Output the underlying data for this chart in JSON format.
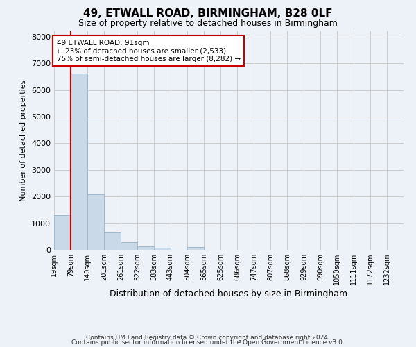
{
  "title1": "49, ETWALL ROAD, BIRMINGHAM, B28 0LF",
  "title2": "Size of property relative to detached houses in Birmingham",
  "xlabel": "Distribution of detached houses by size in Birmingham",
  "ylabel": "Number of detached properties",
  "bar_labels": [
    "19sqm",
    "79sqm",
    "140sqm",
    "201sqm",
    "261sqm",
    "322sqm",
    "383sqm",
    "443sqm",
    "504sqm",
    "565sqm",
    "625sqm",
    "686sqm",
    "747sqm",
    "807sqm",
    "868sqm",
    "929sqm",
    "990sqm",
    "1050sqm",
    "1111sqm",
    "1172sqm",
    "1232sqm"
  ],
  "bar_values": [
    1300,
    6600,
    2080,
    650,
    290,
    140,
    90,
    0,
    100,
    0,
    0,
    0,
    0,
    0,
    0,
    0,
    0,
    0,
    0,
    0,
    0
  ],
  "bar_color": "#c9d9e8",
  "bar_edge_color": "#a0b8cc",
  "vline_x": 1.0,
  "vline_color": "#cc0000",
  "annotation_text": "49 ETWALL ROAD: 91sqm\n← 23% of detached houses are smaller (2,533)\n75% of semi-detached houses are larger (8,282) →",
  "annotation_box_color": "#ffffff",
  "annotation_box_edge": "#cc0000",
  "ylim": [
    0,
    8200
  ],
  "yticks": [
    0,
    1000,
    2000,
    3000,
    4000,
    5000,
    6000,
    7000,
    8000
  ],
  "grid_color": "#cccccc",
  "bg_color": "#edf2f8",
  "footer1": "Contains HM Land Registry data © Crown copyright and database right 2024.",
  "footer2": "Contains public sector information licensed under the Open Government Licence v3.0."
}
